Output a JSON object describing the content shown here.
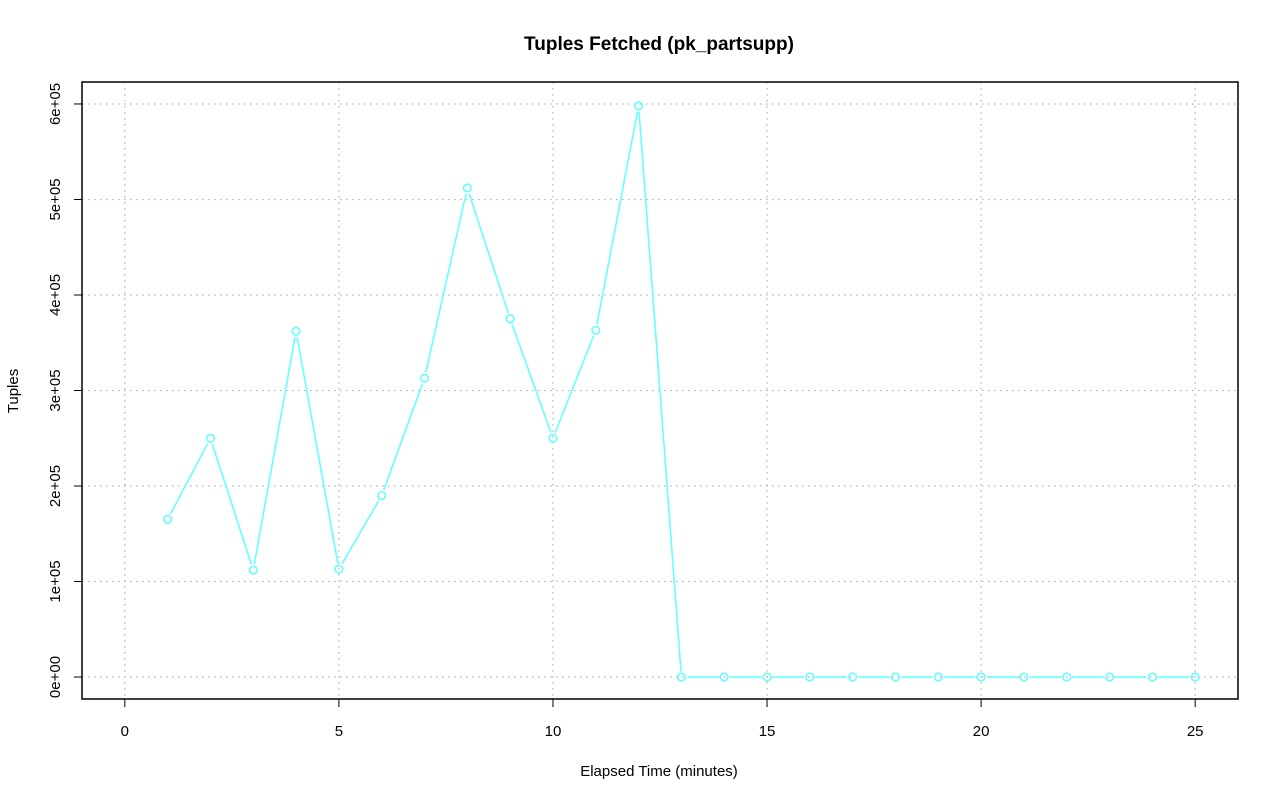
{
  "chart_data": {
    "type": "line",
    "title": "Tuples Fetched (pk_partsupp)",
    "xlabel": "Elapsed Time (minutes)",
    "ylabel": "Tuples",
    "xlim": [
      -1,
      26
    ],
    "ylim": [
      -23000,
      623000
    ],
    "x_ticks": [
      0,
      5,
      10,
      15,
      20,
      25
    ],
    "x_tick_labels": [
      "0",
      "5",
      "10",
      "15",
      "20",
      "25"
    ],
    "y_ticks": [
      0,
      100000,
      200000,
      300000,
      400000,
      500000,
      600000
    ],
    "y_tick_labels": [
      "0e+00",
      "1e+05",
      "2e+05",
      "3e+05",
      "4e+05",
      "5e+05",
      "6e+05"
    ],
    "grid": true,
    "series": [
      {
        "color": "#66ffff",
        "marker": "open-circle",
        "x": [
          1,
          2,
          3,
          4,
          5,
          6,
          7,
          8,
          9,
          10,
          11,
          12,
          13,
          14,
          15,
          16,
          17,
          18,
          19,
          20,
          21,
          22,
          23,
          24,
          25
        ],
        "values": [
          165000,
          250000,
          112000,
          362000,
          113000,
          190000,
          313000,
          512000,
          375000,
          250000,
          363000,
          598000,
          0,
          0,
          0,
          0,
          0,
          0,
          0,
          0,
          0,
          0,
          0,
          0,
          0
        ]
      }
    ]
  }
}
